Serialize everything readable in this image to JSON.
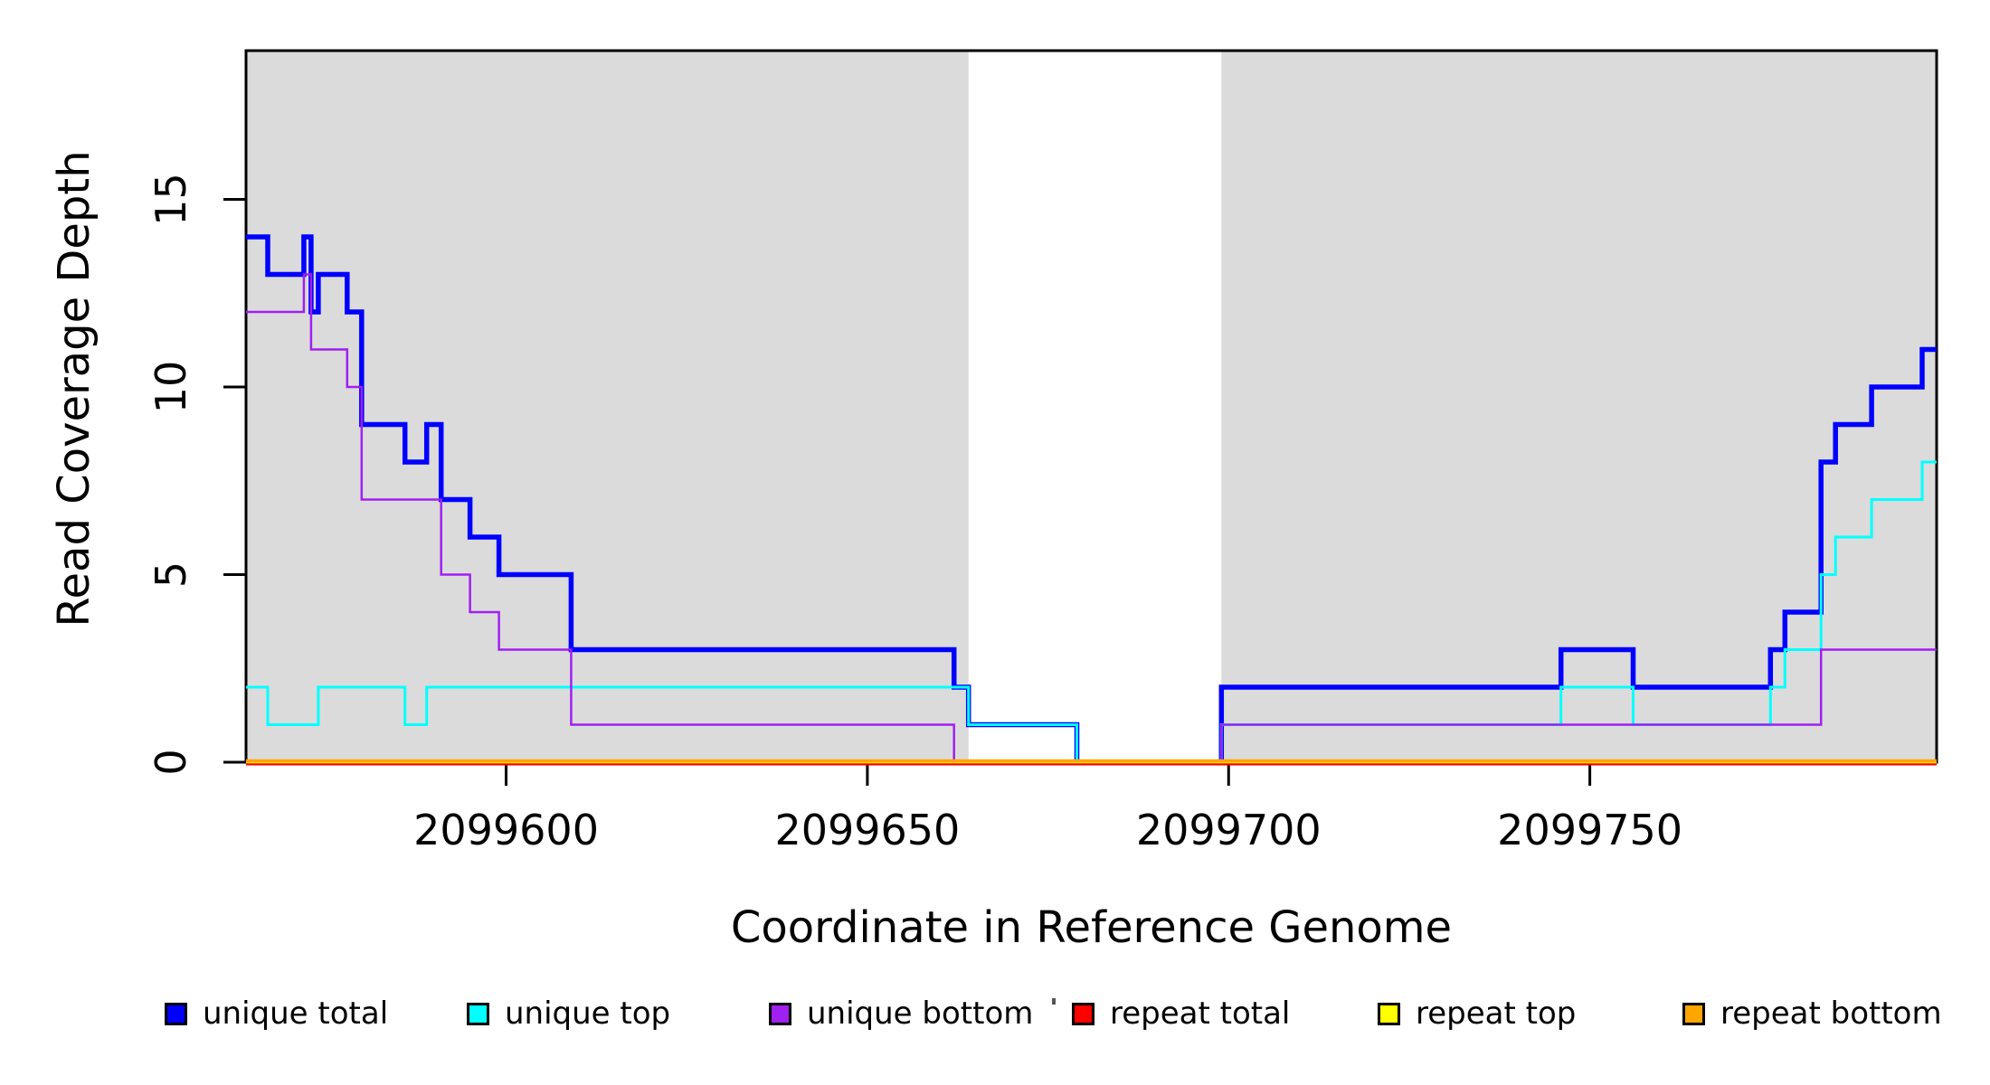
{
  "chart_data": {
    "type": "line",
    "subtype": "step-coverage",
    "title": "",
    "xlabel": "Coordinate in Reference Genome",
    "ylabel": "Read Coverage Depth",
    "xlim": [
      2099564,
      2099798
    ],
    "ylim": [
      0,
      19
    ],
    "grid": false,
    "x_ticks": [
      2099600,
      2099650,
      2099700,
      2099750
    ],
    "x_tick_labels": [
      "2099600",
      "2099650",
      "2099700",
      "2099750"
    ],
    "y_ticks": [
      0,
      5,
      10,
      15
    ],
    "y_tick_labels": [
      "0",
      "5",
      "10",
      "15"
    ],
    "shaded_regions": {
      "color": "#DBDBDB",
      "ranges": [
        [
          2099564,
          2099664
        ],
        [
          2099699,
          2099798
        ]
      ]
    },
    "series": [
      {
        "name": "unique total",
        "color": "#0000FF",
        "width": 5.5,
        "steps": [
          [
            2099564,
            14
          ],
          [
            2099567,
            13
          ],
          [
            2099572,
            14
          ],
          [
            2099573,
            12
          ],
          [
            2099574,
            13
          ],
          [
            2099578,
            12
          ],
          [
            2099580,
            9
          ],
          [
            2099586,
            8
          ],
          [
            2099589,
            9
          ],
          [
            2099591,
            7
          ],
          [
            2099595,
            6
          ],
          [
            2099599,
            5
          ],
          [
            2099609,
            3
          ],
          [
            2099662,
            2
          ],
          [
            2099664,
            1
          ],
          [
            2099679,
            0
          ],
          [
            2099699,
            2
          ],
          [
            2099746,
            3
          ],
          [
            2099756,
            2
          ],
          [
            2099775,
            3
          ],
          [
            2099777,
            4
          ],
          [
            2099782,
            8
          ],
          [
            2099784,
            9
          ],
          [
            2099789,
            10
          ],
          [
            2099796,
            11
          ]
        ]
      },
      {
        "name": "unique top",
        "color": "#00FFFF",
        "width": 3,
        "steps": [
          [
            2099564,
            2
          ],
          [
            2099567,
            1
          ],
          [
            2099574,
            2
          ],
          [
            2099586,
            1
          ],
          [
            2099589,
            2
          ],
          [
            2099664,
            1
          ],
          [
            2099679,
            0
          ],
          [
            2099699,
            1
          ],
          [
            2099746,
            2
          ],
          [
            2099756,
            1
          ],
          [
            2099775,
            2
          ],
          [
            2099777,
            3
          ],
          [
            2099782,
            5
          ],
          [
            2099784,
            6
          ],
          [
            2099789,
            7
          ],
          [
            2099796,
            8
          ]
        ]
      },
      {
        "name": "unique bottom",
        "color": "#A020F0",
        "width": 2.5,
        "steps": [
          [
            2099564,
            12
          ],
          [
            2099572,
            13
          ],
          [
            2099573,
            11
          ],
          [
            2099578,
            10
          ],
          [
            2099580,
            7
          ],
          [
            2099591,
            5
          ],
          [
            2099595,
            4
          ],
          [
            2099599,
            3
          ],
          [
            2099609,
            1
          ],
          [
            2099662,
            0
          ],
          [
            2099699,
            1
          ],
          [
            2099782,
            3
          ]
        ]
      },
      {
        "name": "repeat total",
        "color": "#FF0000",
        "width": 4,
        "steps": [
          [
            2099564,
            0
          ]
        ]
      },
      {
        "name": "repeat top",
        "color": "#FFFF00",
        "width": 2.5,
        "steps": [
          [
            2099564,
            0
          ]
        ]
      },
      {
        "name": "repeat bottom",
        "color": "#FFA500",
        "width": 3.5,
        "steps": [
          [
            2099564,
            0
          ]
        ]
      }
    ]
  },
  "legend": {
    "items": [
      {
        "label": "unique total",
        "color": "#0000FF"
      },
      {
        "label": "unique top",
        "color": "#00FFFF"
      },
      {
        "label": "unique bottom",
        "color": "#A020F0"
      },
      {
        "label": "repeat total",
        "color": "#FF0000"
      },
      {
        "label": "repeat top",
        "color": "#FFFF00"
      },
      {
        "label": "repeat bottom",
        "color": "#FFA500"
      }
    ]
  },
  "colors": {
    "background": "#FFFFFF",
    "plot_shading": "#DBDBDB",
    "axis": "#000000"
  }
}
